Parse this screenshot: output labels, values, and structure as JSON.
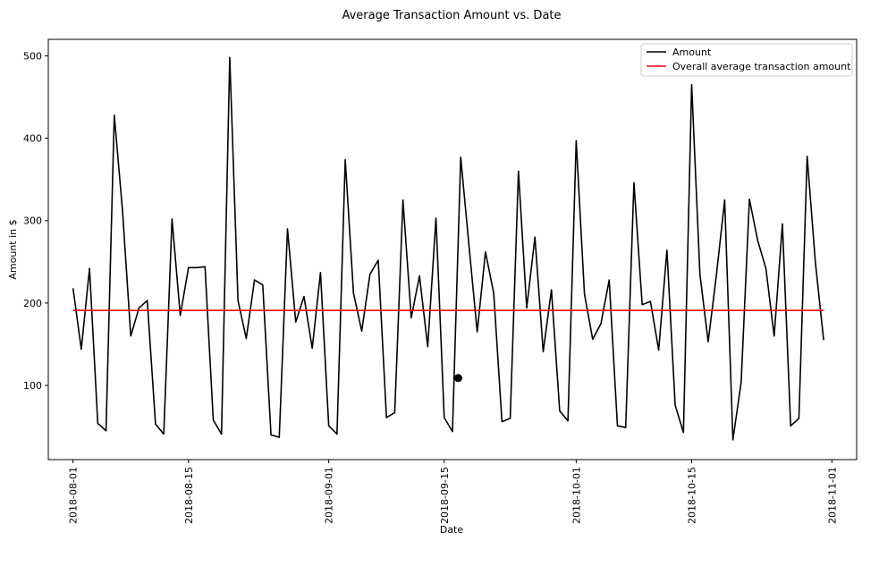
{
  "chart_data": {
    "type": "line",
    "title": "Average Transaction Amount vs. Date",
    "xlabel": "Date",
    "ylabel": "Amount in $",
    "ylim": [
      10,
      520
    ],
    "xlim": [
      "2018-07-29",
      "2018-11-04"
    ],
    "start_date": "2018-08-01",
    "x_ticks": [
      {
        "label": "2018-08-01",
        "day": 0
      },
      {
        "label": "2018-08-15",
        "day": 14
      },
      {
        "label": "2018-09-01",
        "day": 31
      },
      {
        "label": "2018-09-15",
        "day": 45
      },
      {
        "label": "2018-10-01",
        "day": 61
      },
      {
        "label": "2018-10-15",
        "day": 75
      },
      {
        "label": "2018-11-01",
        "day": 92
      }
    ],
    "y_ticks": [
      100,
      200,
      300,
      400,
      500
    ],
    "legend_position": "top-right",
    "series": [
      {
        "name": "Amount",
        "color": "#000000",
        "values": [
          218,
          144,
          242,
          54,
          45,
          428,
          312,
          160,
          194,
          203,
          53,
          41,
          302,
          185,
          243,
          243,
          244,
          58,
          41,
          498,
          203,
          157,
          228,
          222,
          40,
          37,
          290,
          177,
          208,
          145,
          237,
          51,
          41,
          374,
          212,
          166,
          235,
          252,
          61,
          67,
          325,
          182,
          233,
          147,
          303,
          61,
          44,
          377,
          270,
          165,
          262,
          212,
          56,
          60,
          360,
          194,
          280,
          141,
          216,
          69,
          57,
          397,
          211,
          156,
          175,
          228,
          51,
          49,
          346,
          198,
          202,
          143,
          264,
          76,
          43,
          465,
          235,
          153,
          234,
          325,
          34,
          104,
          326,
          276,
          242,
          160,
          296,
          51,
          60,
          378,
          249,
          155
        ]
      },
      {
        "name": "Overall average transaction amount",
        "color": "#ff0000",
        "values": [
          191
        ]
      }
    ],
    "marker": {
      "day": 46.7,
      "value": 109,
      "color": "#000000"
    }
  }
}
